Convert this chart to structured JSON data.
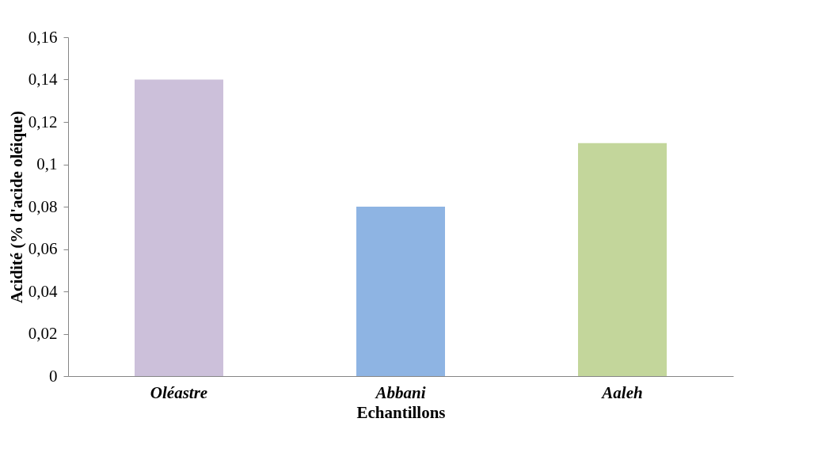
{
  "chart_data": {
    "type": "bar",
    "xlabel": "Echantillons",
    "ylabel": "Acidité (% d'acide oléique)",
    "categories": [
      "Oléastre",
      "Abbani",
      "Aaleh"
    ],
    "values": [
      0.14,
      0.08,
      0.11
    ],
    "colors": [
      "#ccc0da",
      "#8eb4e3",
      "#c3d69b"
    ],
    "ylim": [
      0,
      0.16
    ],
    "yticks": [
      0,
      {
        "value": 0.02,
        "label": "0,02"
      },
      {
        "value": 0.04,
        "label": "0,04"
      },
      {
        "value": 0.06,
        "label": "0,06"
      },
      {
        "value": 0.08,
        "label": "0,08"
      },
      {
        "value": 0.1,
        "label": "0,1"
      },
      {
        "value": 0.12,
        "label": "0,12"
      },
      {
        "value": 0.14,
        "label": "0,14"
      },
      {
        "value": 0.16,
        "label": "0,16"
      }
    ],
    "grid": false
  }
}
